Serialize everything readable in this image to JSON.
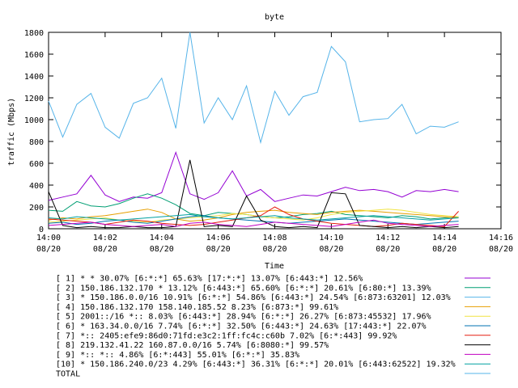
{
  "chart_data": {
    "type": "line",
    "title": "byte",
    "xlabel": "Time",
    "ylabel": "traffic (Mbps)",
    "ylim": [
      0,
      1800
    ],
    "xlim": [
      0,
      16
    ],
    "y_ticks": [
      0,
      200,
      400,
      600,
      800,
      1000,
      1200,
      1400,
      1600,
      1800
    ],
    "x_ticks": [
      {
        "value": 0,
        "time": "14:00",
        "date": "08/20"
      },
      {
        "value": 2,
        "time": "14:02",
        "date": "08/20"
      },
      {
        "value": 4,
        "time": "14:04",
        "date": "08/20"
      },
      {
        "value": 6,
        "time": "14:06",
        "date": "08/20"
      },
      {
        "value": 8,
        "time": "14:08",
        "date": "08/20"
      },
      {
        "value": 10,
        "time": "14:10",
        "date": "08/20"
      },
      {
        "value": 12,
        "time": "14:12",
        "date": "08/20"
      },
      {
        "value": 14,
        "time": "14:14",
        "date": "08/20"
      },
      {
        "value": 16,
        "time": "14:16",
        "date": "08/20"
      }
    ],
    "grid": false,
    "legend_position": "bottom",
    "x": [
      0,
      0.5,
      1,
      1.5,
      2,
      2.5,
      3,
      3.5,
      4,
      4.5,
      5,
      5.5,
      6,
      6.5,
      7,
      7.5,
      8,
      8.5,
      9,
      9.5,
      10,
      10.5,
      11,
      11.5,
      12,
      12.5,
      13,
      13.5,
      14,
      14.5
    ],
    "series": [
      {
        "name": "[ 1] * * 30.07%  [6:*:*] 65.63% [17:*:*] 13.07% [6:443:*] 12.56%",
        "color": "#9400d3",
        "values": [
          260,
          290,
          320,
          490,
          310,
          250,
          290,
          280,
          330,
          700,
          320,
          270,
          330,
          530,
          300,
          360,
          250,
          280,
          310,
          300,
          340,
          380,
          350,
          360,
          340,
          290,
          350,
          340,
          360,
          340
        ]
      },
      {
        "name": "[ 2] 150.186.132.170 * 13.12%  [6:443:*] 65.60% [6:*:*] 20.61% [6:80:*] 13.39%",
        "color": "#009e73",
        "values": [
          170,
          160,
          250,
          210,
          200,
          230,
          280,
          320,
          280,
          220,
          140,
          120,
          150,
          140,
          130,
          110,
          100,
          110,
          130,
          140,
          160,
          130,
          120,
          110,
          100,
          120,
          110,
          90,
          100,
          110
        ]
      },
      {
        "name": "[ 3] * 150.186.0.0/16 10.91%  [6:*:*] 54.86% [6:443:*] 24.54% [6:873:63201] 12.03%",
        "color": "#56b4e9",
        "values": [
          1170,
          840,
          1140,
          1240,
          930,
          830,
          1150,
          1200,
          1380,
          920,
          1800,
          970,
          1200,
          1000,
          1310,
          790,
          1260,
          1040,
          1210,
          1250,
          1670,
          1530,
          980,
          1000,
          1010,
          1140,
          870,
          940,
          930,
          980
        ]
      },
      {
        "name": "[ 4] 150.186.132.170 158.140.185.52 8.23%  [6:873:*] 99.61%",
        "color": "#e69f00",
        "values": [
          80,
          100,
          90,
          110,
          120,
          140,
          160,
          180,
          150,
          90,
          70,
          80,
          100,
          130,
          150,
          160,
          170,
          150,
          140,
          130,
          150,
          160,
          170,
          160,
          150,
          140,
          130,
          120,
          110,
          100
        ]
      },
      {
        "name": "[ 5] 2001::/16 *:: 8.03%  [6:443:*] 28.94% [6:*:*] 26.27% [6:873:45532] 17.96%",
        "color": "#f0e442",
        "values": [
          60,
          70,
          80,
          90,
          100,
          80,
          70,
          60,
          80,
          90,
          100,
          110,
          120,
          140,
          130,
          110,
          100,
          90,
          80,
          100,
          130,
          150,
          160,
          170,
          180,
          170,
          150,
          130,
          120,
          110
        ]
      },
      {
        "name": "[ 6] * 163.34.0.0/16 7.74%  [6:*:*] 32.50% [6:443:*] 24.63% [17:443:*] 22.07%",
        "color": "#0072b2",
        "values": [
          50,
          60,
          40,
          50,
          70,
          80,
          60,
          50,
          70,
          90,
          110,
          120,
          100,
          90,
          80,
          70,
          60,
          50,
          60,
          70,
          80,
          90,
          80,
          70,
          60,
          50,
          40,
          50,
          60,
          70
        ]
      },
      {
        "name": "[ 7] *:: 2405:efe9:86d0:71fd:e3c2:1ff:fc4c:c60b 7.02%  [6:*:443] 99.92%",
        "color": "#e51e10",
        "values": [
          90,
          80,
          70,
          60,
          40,
          60,
          80,
          70,
          50,
          40,
          30,
          40,
          60,
          80,
          100,
          120,
          200,
          130,
          90,
          70,
          50,
          40,
          30,
          20,
          30,
          50,
          40,
          30,
          20,
          160
        ]
      },
      {
        "name": "[ 8] 219.132.41.22 160.87.0.0/16 5.74%  [6:8080:*] 99.57%",
        "color": "#000000",
        "values": [
          340,
          30,
          10,
          20,
          10,
          10,
          20,
          10,
          10,
          20,
          630,
          20,
          30,
          20,
          300,
          80,
          20,
          10,
          20,
          10,
          330,
          320,
          30,
          20,
          10,
          20,
          10,
          20,
          10,
          20
        ]
      },
      {
        "name": "[ 9] *:: *:: 4.86%  [6:*:443] 55.01% [6:*:*] 35.83%",
        "color": "#c000c0",
        "values": [
          30,
          40,
          50,
          60,
          40,
          30,
          20,
          30,
          40,
          20,
          50,
          60,
          40,
          30,
          20,
          40,
          60,
          50,
          40,
          30,
          20,
          40,
          60,
          80,
          50,
          40,
          30,
          20,
          30,
          40
        ]
      },
      {
        "name": "[10] * 150.186.240.0/23 4.29%  [6:443:*] 36.31% [6:*:*] 20.01% [6:443:62522] 19.32%",
        "color": "#00a0a0",
        "values": [
          100,
          90,
          110,
          100,
          90,
          80,
          90,
          100,
          110,
          120,
          130,
          110,
          100,
          90,
          100,
          110,
          120,
          100,
          90,
          80,
          90,
          100,
          110,
          120,
          110,
          100,
          90,
          80,
          90,
          100
        ]
      }
    ],
    "total_label": "TOTAL",
    "total_color": "#56b4e9"
  }
}
